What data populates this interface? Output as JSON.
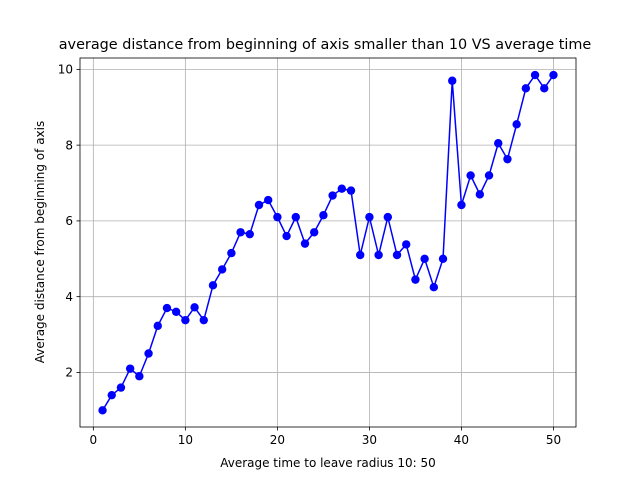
{
  "chart_data": {
    "type": "line",
    "title": "average distance from beginning of axis smaller than 10 VS average time",
    "xlabel": "Average time to leave radius 10: 50",
    "ylabel": "Average distance from beginning of axis",
    "xlim": [
      -1.45,
      52.45
    ],
    "ylim": [
      0.56,
      10.3
    ],
    "xticks": [
      0,
      10,
      20,
      30,
      40,
      50
    ],
    "yticks": [
      2,
      4,
      6,
      8,
      10
    ],
    "xtick_labels": [
      "0",
      "10",
      "20",
      "30",
      "40",
      "50"
    ],
    "ytick_labels": [
      "2",
      "4",
      "6",
      "8",
      "10"
    ],
    "grid": true,
    "series": [
      {
        "color": "#0000ff",
        "marker": "circle",
        "x": [
          1,
          2,
          3,
          4,
          5,
          6,
          7,
          8,
          9,
          10,
          11,
          12,
          13,
          14,
          15,
          16,
          17,
          18,
          19,
          20,
          21,
          22,
          23,
          24,
          25,
          26,
          27,
          28,
          29,
          30,
          31,
          32,
          33,
          34,
          35,
          36,
          37,
          38,
          39,
          40,
          41,
          42,
          43,
          44,
          45,
          46,
          47,
          48,
          49,
          50
        ],
        "y": [
          1.0,
          1.4,
          1.6,
          2.1,
          1.9,
          2.5,
          3.23,
          3.7,
          3.6,
          3.38,
          3.72,
          3.38,
          4.3,
          4.72,
          5.15,
          5.7,
          5.65,
          6.42,
          6.55,
          6.1,
          5.6,
          6.1,
          5.4,
          5.7,
          6.15,
          6.67,
          6.85,
          6.8,
          5.1,
          6.1,
          5.1,
          6.1,
          5.1,
          5.38,
          4.45,
          5.0,
          4.25,
          5.0,
          9.7,
          6.42,
          7.2,
          6.7,
          7.2,
          8.05,
          7.63,
          8.55,
          9.5,
          9.85,
          9.5,
          9.85
        ]
      }
    ]
  }
}
